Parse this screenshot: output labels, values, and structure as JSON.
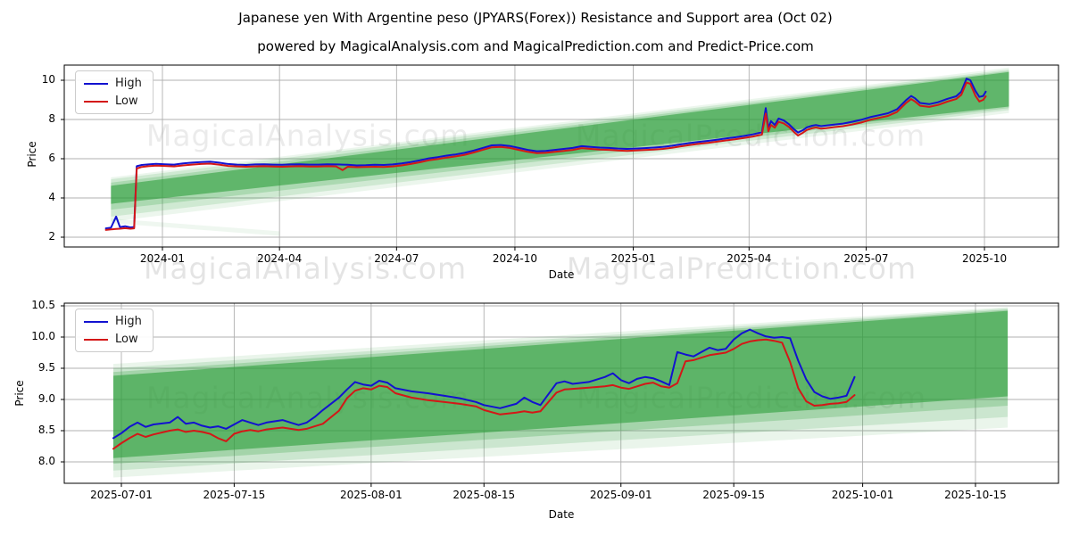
{
  "title": "Japanese yen With Argentine peso (JPYARS(Forex)) Resistance and Support area (Oct 02)",
  "subtitle": "powered by MagicalAnalysis.com and MagicalPrediction.com and Predict-Price.com",
  "watermarks": {
    "analysis": "MagicalAnalysis.com",
    "prediction": "MagicalPrediction.com"
  },
  "legend": {
    "high_label": "High",
    "low_label": "Low"
  },
  "colors": {
    "high": "#1212d0",
    "low": "#d41717",
    "band": "#2e9e3c",
    "grid": "#b0b0b0",
    "spine": "#000000"
  },
  "chart_data": [
    {
      "type": "line",
      "title": "",
      "xlabel": "Date",
      "ylabel": "Price",
      "legend_position": "upper left",
      "grid": true,
      "ylim": [
        1.5,
        10.8
      ],
      "xlim": [
        "2023-10-16",
        "2025-10-29"
      ],
      "x_ticks": [
        "2024-01",
        "2024-04",
        "2024-07",
        "2024-10",
        "2025-01",
        "2025-04",
        "2025-07",
        "2025-10"
      ],
      "y_ticks": [
        "2",
        "4",
        "6",
        "8",
        "10"
      ],
      "columns": [
        "date",
        "high",
        "low"
      ],
      "points": [
        [
          "2023-11-18",
          2.45,
          2.37
        ],
        [
          "2023-11-22",
          2.48,
          2.4
        ],
        [
          "2023-11-26",
          3.05,
          2.42
        ],
        [
          "2023-11-29",
          2.52,
          2.43
        ],
        [
          "2023-12-03",
          2.56,
          2.46
        ],
        [
          "2023-12-07",
          2.5,
          2.43
        ],
        [
          "2023-12-10",
          2.52,
          2.45
        ],
        [
          "2023-12-12",
          5.62,
          5.5
        ],
        [
          "2023-12-16",
          5.68,
          5.58
        ],
        [
          "2023-12-21",
          5.71,
          5.62
        ],
        [
          "2023-12-27",
          5.74,
          5.65
        ],
        [
          "2024-01-03",
          5.72,
          5.63
        ],
        [
          "2024-01-10",
          5.7,
          5.61
        ],
        [
          "2024-01-17",
          5.76,
          5.66
        ],
        [
          "2024-01-24",
          5.8,
          5.7
        ],
        [
          "2024-01-31",
          5.83,
          5.73
        ],
        [
          "2024-02-07",
          5.85,
          5.75
        ],
        [
          "2024-02-14",
          5.8,
          5.7
        ],
        [
          "2024-02-21",
          5.73,
          5.63
        ],
        [
          "2024-02-28",
          5.7,
          5.61
        ],
        [
          "2024-03-06",
          5.68,
          5.59
        ],
        [
          "2024-03-13",
          5.71,
          5.61
        ],
        [
          "2024-03-20",
          5.72,
          5.62
        ],
        [
          "2024-03-27",
          5.7,
          5.6
        ],
        [
          "2024-04-03",
          5.69,
          5.59
        ],
        [
          "2024-04-10",
          5.71,
          5.61
        ],
        [
          "2024-04-17",
          5.72,
          5.62
        ],
        [
          "2024-04-24",
          5.7,
          5.6
        ],
        [
          "2024-05-01",
          5.7,
          5.6
        ],
        [
          "2024-05-08",
          5.72,
          5.62
        ],
        [
          "2024-05-15",
          5.71,
          5.61
        ],
        [
          "2024-05-20",
          5.7,
          5.42
        ],
        [
          "2024-05-24",
          5.69,
          5.59
        ],
        [
          "2024-05-31",
          5.66,
          5.57
        ],
        [
          "2024-06-07",
          5.67,
          5.58
        ],
        [
          "2024-06-14",
          5.69,
          5.59
        ],
        [
          "2024-06-21",
          5.68,
          5.58
        ],
        [
          "2024-06-28",
          5.71,
          5.61
        ],
        [
          "2024-07-05",
          5.76,
          5.66
        ],
        [
          "2024-07-12",
          5.83,
          5.73
        ],
        [
          "2024-07-19",
          5.92,
          5.82
        ],
        [
          "2024-07-26",
          6.02,
          5.92
        ],
        [
          "2024-08-02",
          6.08,
          5.98
        ],
        [
          "2024-08-09",
          6.16,
          6.06
        ],
        [
          "2024-08-16",
          6.22,
          6.12
        ],
        [
          "2024-08-23",
          6.3,
          6.2
        ],
        [
          "2024-08-30",
          6.42,
          6.32
        ],
        [
          "2024-09-06",
          6.55,
          6.45
        ],
        [
          "2024-09-13",
          6.68,
          6.58
        ],
        [
          "2024-09-20",
          6.7,
          6.6
        ],
        [
          "2024-09-27",
          6.65,
          6.55
        ],
        [
          "2024-10-04",
          6.55,
          6.45
        ],
        [
          "2024-10-11",
          6.45,
          6.35
        ],
        [
          "2024-10-18",
          6.38,
          6.28
        ],
        [
          "2024-10-25",
          6.4,
          6.3
        ],
        [
          "2024-11-01",
          6.45,
          6.35
        ],
        [
          "2024-11-08",
          6.5,
          6.4
        ],
        [
          "2024-11-15",
          6.55,
          6.45
        ],
        [
          "2024-11-22",
          6.64,
          6.54
        ],
        [
          "2024-11-29",
          6.6,
          6.5
        ],
        [
          "2024-12-06",
          6.57,
          6.47
        ],
        [
          "2024-12-13",
          6.55,
          6.45
        ],
        [
          "2024-12-20",
          6.52,
          6.42
        ],
        [
          "2024-12-27",
          6.5,
          6.4
        ],
        [
          "2025-01-03",
          6.52,
          6.42
        ],
        [
          "2025-01-10",
          6.54,
          6.44
        ],
        [
          "2025-01-17",
          6.57,
          6.47
        ],
        [
          "2025-01-24",
          6.6,
          6.5
        ],
        [
          "2025-01-31",
          6.66,
          6.56
        ],
        [
          "2025-02-07",
          6.73,
          6.63
        ],
        [
          "2025-02-14",
          6.8,
          6.7
        ],
        [
          "2025-02-21",
          6.86,
          6.76
        ],
        [
          "2025-02-28",
          6.91,
          6.81
        ],
        [
          "2025-03-07",
          6.97,
          6.87
        ],
        [
          "2025-03-14",
          7.03,
          6.93
        ],
        [
          "2025-03-21",
          7.09,
          6.99
        ],
        [
          "2025-03-28",
          7.16,
          7.06
        ],
        [
          "2025-04-04",
          7.24,
          7.13
        ],
        [
          "2025-04-11",
          7.35,
          7.23
        ],
        [
          "2025-04-14",
          8.58,
          8.3
        ],
        [
          "2025-04-16",
          7.55,
          7.4
        ],
        [
          "2025-04-18",
          7.92,
          7.72
        ],
        [
          "2025-04-21",
          7.72,
          7.58
        ],
        [
          "2025-04-24",
          8.05,
          7.88
        ],
        [
          "2025-04-28",
          7.95,
          7.8
        ],
        [
          "2025-05-02",
          7.76,
          7.62
        ],
        [
          "2025-05-06",
          7.5,
          7.36
        ],
        [
          "2025-05-09",
          7.33,
          7.18
        ],
        [
          "2025-05-13",
          7.46,
          7.33
        ],
        [
          "2025-05-16",
          7.6,
          7.47
        ],
        [
          "2025-05-20",
          7.68,
          7.55
        ],
        [
          "2025-05-23",
          7.72,
          7.59
        ],
        [
          "2025-05-27",
          7.66,
          7.53
        ],
        [
          "2025-05-31",
          7.69,
          7.56
        ],
        [
          "2025-06-06",
          7.74,
          7.61
        ],
        [
          "2025-06-13",
          7.79,
          7.66
        ],
        [
          "2025-06-20",
          7.88,
          7.74
        ],
        [
          "2025-06-27",
          7.98,
          7.84
        ],
        [
          "2025-07-04",
          8.12,
          7.98
        ],
        [
          "2025-07-11",
          8.22,
          8.08
        ],
        [
          "2025-07-18",
          8.32,
          8.18
        ],
        [
          "2025-07-25",
          8.52,
          8.38
        ],
        [
          "2025-08-01",
          8.98,
          8.84
        ],
        [
          "2025-08-05",
          9.2,
          9.04
        ],
        [
          "2025-08-08",
          9.08,
          8.92
        ],
        [
          "2025-08-12",
          8.84,
          8.7
        ],
        [
          "2025-08-19",
          8.78,
          8.64
        ],
        [
          "2025-08-26",
          8.88,
          8.74
        ],
        [
          "2025-09-02",
          9.05,
          8.91
        ],
        [
          "2025-09-09",
          9.18,
          9.04
        ],
        [
          "2025-09-13",
          9.42,
          9.26
        ],
        [
          "2025-09-17",
          10.08,
          9.88
        ],
        [
          "2025-09-20",
          10.0,
          9.82
        ],
        [
          "2025-09-24",
          9.45,
          9.2
        ],
        [
          "2025-09-27",
          9.15,
          8.92
        ],
        [
          "2025-09-30",
          9.2,
          9.0
        ],
        [
          "2025-10-02",
          9.42,
          9.18
        ]
      ],
      "bands": [
        {
          "start": "2023-11-22",
          "end": "2025-10-20",
          "top_start": 5.05,
          "bottom_start": 2.8,
          "top_end": 10.65,
          "bottom_end": 8.33,
          "opacity": 0.09
        },
        {
          "start": "2023-11-22",
          "end": "2025-10-20",
          "top_start": 4.95,
          "bottom_start": 3.05,
          "top_end": 10.55,
          "bottom_end": 8.48,
          "opacity": 0.15
        },
        {
          "start": "2023-11-22",
          "end": "2025-10-20",
          "top_start": 4.78,
          "bottom_start": 3.4,
          "top_end": 10.48,
          "bottom_end": 8.58,
          "opacity": 0.22
        },
        {
          "start": "2023-11-22",
          "end": "2025-10-20",
          "top_start": 4.62,
          "bottom_start": 3.7,
          "top_end": 10.42,
          "bottom_end": 8.66,
          "opacity": 0.6
        },
        {
          "start": "2023-11-22",
          "end": "2024-04-01",
          "top_start": 2.95,
          "bottom_start": 2.72,
          "top_end": 2.3,
          "bottom_end": 2.07,
          "opacity": 0.08
        }
      ]
    },
    {
      "type": "line",
      "title": "",
      "xlabel": "Date",
      "ylabel": "Price",
      "legend_position": "upper left",
      "grid": true,
      "ylim": [
        7.65,
        10.55
      ],
      "xlim": [
        "2025-06-24",
        "2025-10-25"
      ],
      "x_ticks": [
        "2025-07-01",
        "2025-07-15",
        "2025-08-01",
        "2025-08-15",
        "2025-09-01",
        "2025-09-15",
        "2025-10-01",
        "2025-10-15"
      ],
      "y_ticks": [
        "8.0",
        "8.5",
        "9.0",
        "9.5",
        "10.0",
        "10.5"
      ],
      "columns": [
        "date",
        "high",
        "low"
      ],
      "points": [
        [
          "2025-06-30",
          8.38,
          8.21
        ],
        [
          "2025-07-01",
          8.46,
          8.3
        ],
        [
          "2025-07-02",
          8.56,
          8.38
        ],
        [
          "2025-07-03",
          8.63,
          8.45
        ],
        [
          "2025-07-04",
          8.56,
          8.4
        ],
        [
          "2025-07-05",
          8.6,
          8.44
        ],
        [
          "2025-07-07",
          8.63,
          8.5
        ],
        [
          "2025-07-08",
          8.72,
          8.52
        ],
        [
          "2025-07-09",
          8.61,
          8.48
        ],
        [
          "2025-07-10",
          8.63,
          8.5
        ],
        [
          "2025-07-11",
          8.58,
          8.48
        ],
        [
          "2025-07-12",
          8.55,
          8.45
        ],
        [
          "2025-07-13",
          8.57,
          8.38
        ],
        [
          "2025-07-14",
          8.53,
          8.33
        ],
        [
          "2025-07-15",
          8.6,
          8.45
        ],
        [
          "2025-07-16",
          8.67,
          8.49
        ],
        [
          "2025-07-17",
          8.63,
          8.51
        ],
        [
          "2025-07-18",
          8.59,
          8.49
        ],
        [
          "2025-07-19",
          8.63,
          8.52
        ],
        [
          "2025-07-21",
          8.67,
          8.55
        ],
        [
          "2025-07-22",
          8.63,
          8.53
        ],
        [
          "2025-07-23",
          8.59,
          8.51
        ],
        [
          "2025-07-24",
          8.63,
          8.53
        ],
        [
          "2025-07-25",
          8.72,
          8.57
        ],
        [
          "2025-07-26",
          8.83,
          8.61
        ],
        [
          "2025-07-28",
          9.03,
          8.82
        ],
        [
          "2025-07-29",
          9.16,
          9.02
        ],
        [
          "2025-07-30",
          9.28,
          9.14
        ],
        [
          "2025-07-31",
          9.24,
          9.18
        ],
        [
          "2025-08-01",
          9.22,
          9.16
        ],
        [
          "2025-08-02",
          9.3,
          9.22
        ],
        [
          "2025-08-03",
          9.27,
          9.2
        ],
        [
          "2025-08-04",
          9.18,
          9.1
        ],
        [
          "2025-08-06",
          9.13,
          9.03
        ],
        [
          "2025-08-08",
          9.1,
          8.99
        ],
        [
          "2025-08-10",
          9.06,
          8.96
        ],
        [
          "2025-08-12",
          9.02,
          8.93
        ],
        [
          "2025-08-14",
          8.96,
          8.89
        ],
        [
          "2025-08-15",
          8.91,
          8.83
        ],
        [
          "2025-08-17",
          8.86,
          8.76
        ],
        [
          "2025-08-19",
          8.93,
          8.79
        ],
        [
          "2025-08-20",
          9.03,
          8.81
        ],
        [
          "2025-08-21",
          8.96,
          8.79
        ],
        [
          "2025-08-22",
          8.91,
          8.81
        ],
        [
          "2025-08-24",
          9.26,
          9.11
        ],
        [
          "2025-08-25",
          9.29,
          9.16
        ],
        [
          "2025-08-26",
          9.25,
          9.17
        ],
        [
          "2025-08-28",
          9.28,
          9.19
        ],
        [
          "2025-08-30",
          9.36,
          9.21
        ],
        [
          "2025-08-31",
          9.42,
          9.23
        ],
        [
          "2025-09-01",
          9.31,
          9.19
        ],
        [
          "2025-09-02",
          9.26,
          9.17
        ],
        [
          "2025-09-03",
          9.33,
          9.21
        ],
        [
          "2025-09-04",
          9.36,
          9.25
        ],
        [
          "2025-09-05",
          9.34,
          9.27
        ],
        [
          "2025-09-06",
          9.29,
          9.21
        ],
        [
          "2025-09-07",
          9.23,
          9.19
        ],
        [
          "2025-09-08",
          9.76,
          9.26
        ],
        [
          "2025-09-09",
          9.72,
          9.61
        ],
        [
          "2025-09-10",
          9.69,
          9.63
        ],
        [
          "2025-09-11",
          9.76,
          9.67
        ],
        [
          "2025-09-12",
          9.83,
          9.71
        ],
        [
          "2025-09-13",
          9.79,
          9.73
        ],
        [
          "2025-09-14",
          9.81,
          9.75
        ],
        [
          "2025-09-15",
          9.96,
          9.81
        ],
        [
          "2025-09-16",
          10.06,
          9.89
        ],
        [
          "2025-09-17",
          10.12,
          9.93
        ],
        [
          "2025-09-18",
          10.06,
          9.95
        ],
        [
          "2025-09-19",
          10.01,
          9.96
        ],
        [
          "2025-09-20",
          9.99,
          9.94
        ],
        [
          "2025-09-21",
          10.0,
          9.91
        ],
        [
          "2025-09-22",
          9.98,
          9.6
        ],
        [
          "2025-09-23",
          9.62,
          9.18
        ],
        [
          "2025-09-24",
          9.32,
          8.97
        ],
        [
          "2025-09-25",
          9.12,
          8.9
        ],
        [
          "2025-09-26",
          9.05,
          8.91
        ],
        [
          "2025-09-27",
          9.01,
          8.93
        ],
        [
          "2025-09-28",
          9.03,
          8.94
        ],
        [
          "2025-09-29",
          9.06,
          8.96
        ],
        [
          "2025-09-30",
          9.36,
          9.07
        ]
      ],
      "bands": [
        {
          "start": "2025-06-30",
          "end": "2025-10-19",
          "top_start": 9.57,
          "bottom_start": 7.75,
          "top_end": 10.48,
          "bottom_end": 8.55,
          "opacity": 0.1
        },
        {
          "start": "2025-06-30",
          "end": "2025-10-19",
          "top_start": 9.5,
          "bottom_start": 7.86,
          "top_end": 10.46,
          "bottom_end": 8.72,
          "opacity": 0.16
        },
        {
          "start": "2025-06-30",
          "end": "2025-10-19",
          "top_start": 9.44,
          "bottom_start": 7.97,
          "top_end": 10.44,
          "bottom_end": 8.9,
          "opacity": 0.25
        },
        {
          "start": "2025-06-30",
          "end": "2025-10-19",
          "top_start": 9.38,
          "bottom_start": 8.06,
          "top_end": 10.42,
          "bottom_end": 9.05,
          "opacity": 0.6
        }
      ]
    }
  ]
}
